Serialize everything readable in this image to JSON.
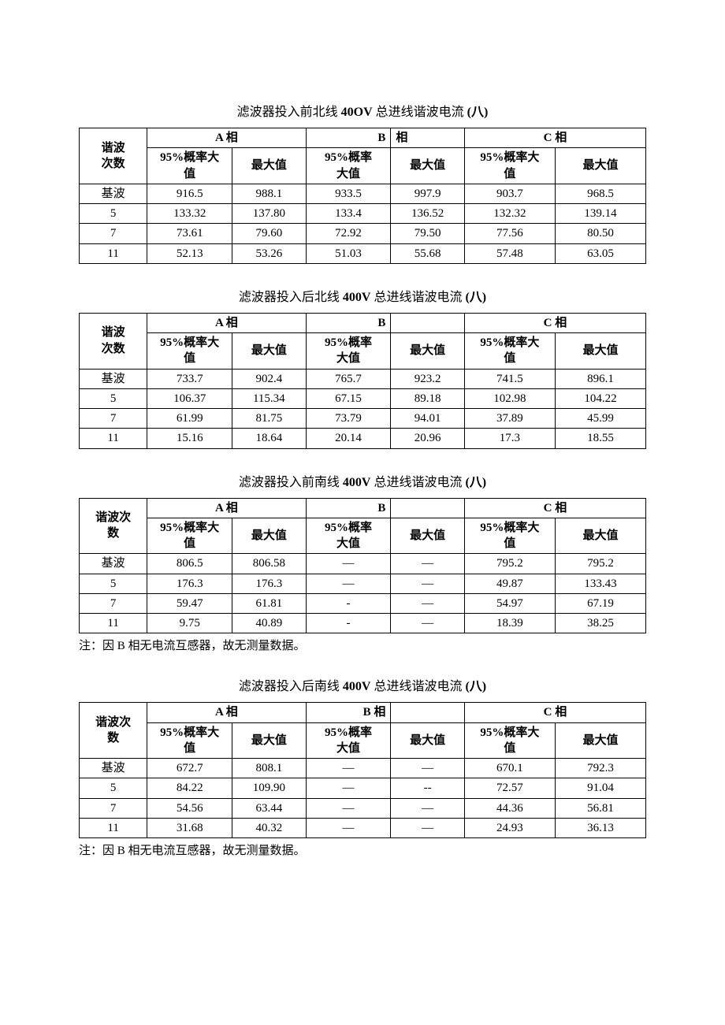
{
  "tables": [
    {
      "title_pre": "滤波器投入前北线 ",
      "title_voltage": "40OV",
      "title_post": " 总进线谐波电流 ",
      "title_paren": "(八)",
      "rowHeaderLabel": "谐波\n次数",
      "phaseA": "A 相",
      "phaseB_left": "B",
      "phaseB_right": "相",
      "phaseC": "C 相",
      "subA1": "95%概率大\n值",
      "subA2": "最大值",
      "subB1": "95%概率\n大值",
      "subB2": "最大值",
      "subC1": "95%概率大\n值",
      "subC2": "最大值",
      "rows": [
        {
          "h": "基波",
          "c": [
            "916.5",
            "988.1",
            "933.5",
            "997.9",
            "903.7",
            "968.5"
          ]
        },
        {
          "h": "5",
          "c": [
            "133.32",
            "137.80",
            "133.4",
            "136.52",
            "132.32",
            "139.14"
          ]
        },
        {
          "h": "7",
          "c": [
            "73.61",
            "79.60",
            "72.92",
            "79.50",
            "77.56",
            "80.50"
          ]
        },
        {
          "h": "11",
          "c": [
            "52.13",
            "53.26",
            "51.03",
            "55.68",
            "57.48",
            "63.05"
          ]
        }
      ],
      "note": null
    },
    {
      "title_pre": "滤波器投入后北线 ",
      "title_voltage": "400V",
      "title_post": " 总进线谐波电流 ",
      "title_paren": "(八)",
      "rowHeaderLabel": "谐波\n次数",
      "phaseA": "A 相",
      "phaseB_left": "B",
      "phaseB_right": "",
      "phaseC": "C 相",
      "subA1": "95%概率大\n值",
      "subA2": "最大值",
      "subB1": "95%概率\n大值",
      "subB2": "最大值",
      "subC1": "95%概率大\n值",
      "subC2": "最大值",
      "rows": [
        {
          "h": "基波",
          "c": [
            "733.7",
            "902.4",
            "765.7",
            "923.2",
            "741.5",
            "896.1"
          ]
        },
        {
          "h": "5",
          "c": [
            "106.37",
            "115.34",
            "67.15",
            "89.18",
            "102.98",
            "104.22"
          ]
        },
        {
          "h": "7",
          "c": [
            "61.99",
            "81.75",
            "73.79",
            "94.01",
            "37.89",
            "45.99"
          ]
        },
        {
          "h": "11",
          "c": [
            "15.16",
            "18.64",
            "20.14",
            "20.96",
            "17.3",
            "18.55"
          ]
        }
      ],
      "note": null
    },
    {
      "title_pre": "滤波器投入前南线 ",
      "title_voltage": "400V",
      "title_post": " 总进线谐波电流 ",
      "title_paren": "(八)",
      "rowHeaderLabel": "谐波次\n数",
      "phaseA": "A 相",
      "phaseB_left": "B",
      "phaseB_right": "",
      "phaseC": "C 相",
      "subA1": "95%概率大\n值",
      "subA2": "最大值",
      "subB1": "95%概率\n大值",
      "subB2": "最大值",
      "subC1": "95%概率大\n值",
      "subC2": "最大值",
      "rows": [
        {
          "h": "基波",
          "c": [
            "806.5",
            "806.58",
            "—",
            "—",
            "795.2",
            "795.2"
          ]
        },
        {
          "h": "5",
          "c": [
            "176.3",
            "176.3",
            "—",
            "—",
            "49.87",
            "133.43"
          ]
        },
        {
          "h": "7",
          "c": [
            "59.47",
            "61.81",
            "-",
            "—",
            "54.97",
            "67.19"
          ]
        },
        {
          "h": "11",
          "c": [
            "9.75",
            "40.89",
            "-",
            "—",
            "18.39",
            "38.25"
          ]
        }
      ],
      "note": "注：因 B 相无电流互感器，故无测量数据。"
    },
    {
      "title_pre": "滤波器投入后南线 ",
      "title_voltage": "400V",
      "title_post": " 总进线谐波电流 ",
      "title_paren": "(八)",
      "rowHeaderLabel": "谐波次\n数",
      "phaseA": "A 相",
      "phaseB_left": "B 相",
      "phaseB_right": "",
      "phaseC": "C 相",
      "subA1": "95%概率大\n值",
      "subA2": "最大值",
      "subB1": "95%概率\n大值",
      "subB2": "最大值",
      "subC1": "95%概率大\n值",
      "subC2": "最大值",
      "rows": [
        {
          "h": "基波",
          "c": [
            "672.7",
            "808.1",
            "—",
            "—",
            "670.1",
            "792.3"
          ]
        },
        {
          "h": "5",
          "c": [
            "84.22",
            "109.90",
            "—",
            "--",
            "72.57",
            "91.04"
          ]
        },
        {
          "h": "7",
          "c": [
            "54.56",
            "63.44",
            "—",
            "—",
            "44.36",
            "56.81"
          ]
        },
        {
          "h": "11",
          "c": [
            "31.68",
            "40.32",
            "—",
            "—",
            "24.93",
            "36.13"
          ]
        }
      ],
      "note": "注：因 B 相无电流互感器，故无测量数据。"
    }
  ],
  "colors": {
    "text": "#000000",
    "border": "#000000",
    "bg": "#ffffff"
  },
  "colwidths": [
    "12%",
    "15%",
    "13%",
    "15%",
    "13%",
    "16%",
    "16%"
  ]
}
